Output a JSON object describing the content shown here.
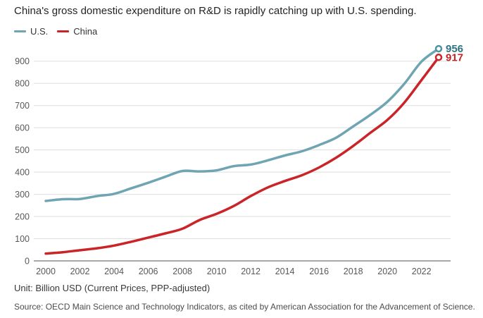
{
  "chart_data": {
    "type": "line",
    "title": "China's gross domestic expenditure on R&D is rapidly catching up with U.S. spending.",
    "unit_note": "Unit: Billion USD (Current Prices, PPP-adjusted)",
    "source_note": "Source: OECD Main Science and Technology Indicators, as cited by American Association for the Advancement of Science.",
    "grid": "horizontal",
    "legend_position": "top-left",
    "x": [
      2000,
      2001,
      2002,
      2003,
      2004,
      2005,
      2006,
      2007,
      2008,
      2009,
      2010,
      2011,
      2012,
      2013,
      2014,
      2015,
      2016,
      2017,
      2018,
      2019,
      2020,
      2021,
      2022,
      2023
    ],
    "xticks": [
      2000,
      2002,
      2004,
      2006,
      2008,
      2010,
      2012,
      2014,
      2016,
      2018,
      2020,
      2022
    ],
    "ylim": [
      0,
      900
    ],
    "ytick_step": 100,
    "series": [
      {
        "name": "U.S.",
        "color": "#6fa5b2",
        "marker_color": "#4f93a3",
        "label_color": "#2e7384",
        "end_label": "956",
        "values": [
          270,
          278,
          279,
          292,
          302,
          327,
          352,
          379,
          405,
          403,
          408,
          427,
          434,
          453,
          475,
          494,
          522,
          555,
          606,
          658,
          717,
          799,
          898,
          956
        ]
      },
      {
        "name": "China",
        "color": "#cb2428",
        "marker_color": "#cb2428",
        "label_color": "#c22427",
        "end_label": "917",
        "values": [
          33,
          39,
          48,
          57,
          69,
          86,
          105,
          124,
          145,
          184,
          212,
          247,
          292,
          331,
          360,
          386,
          421,
          465,
          518,
          577,
          635,
          714,
          815,
          917
        ]
      }
    ]
  }
}
